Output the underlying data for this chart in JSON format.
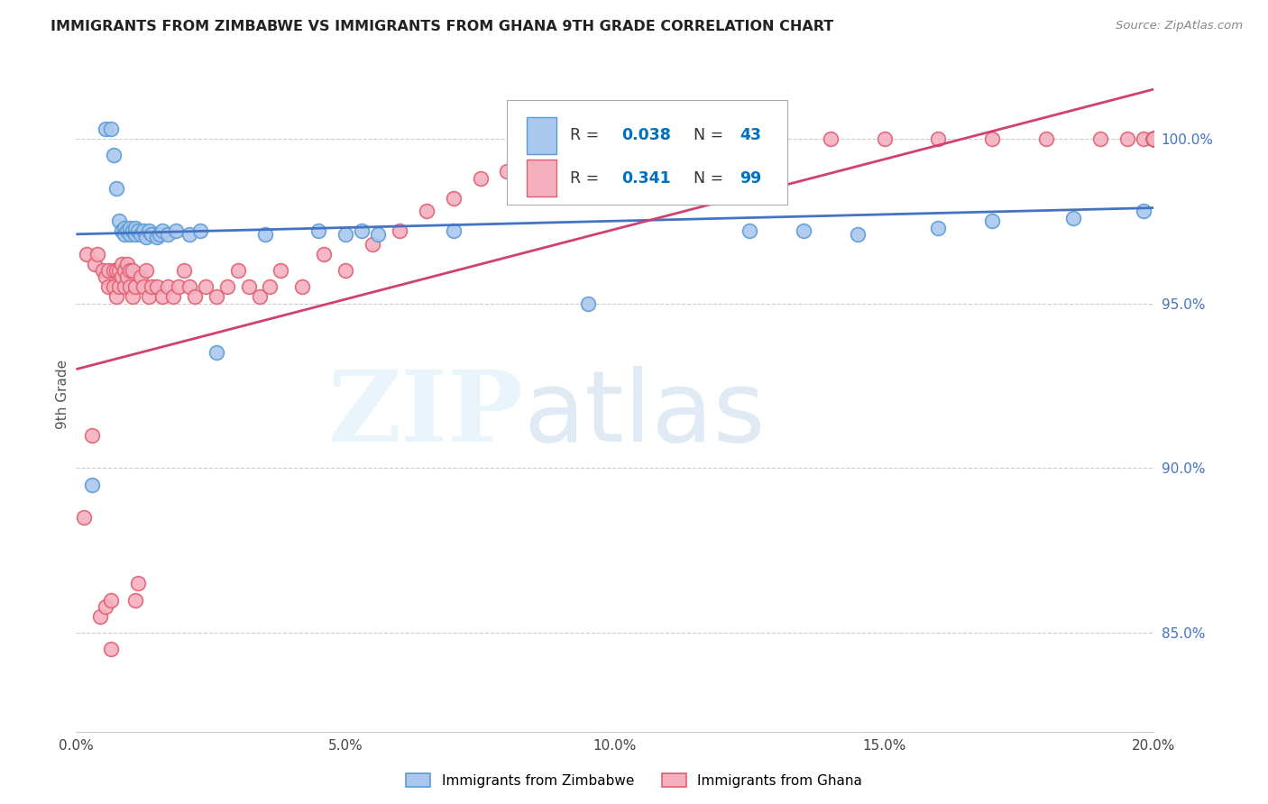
{
  "title": "IMMIGRANTS FROM ZIMBABWE VS IMMIGRANTS FROM GHANA 9TH GRADE CORRELATION CHART",
  "source": "Source: ZipAtlas.com",
  "ylabel": "9th Grade",
  "x_tick_labels": [
    "0.0%",
    "5.0%",
    "10.0%",
    "15.0%",
    "20.0%"
  ],
  "x_tick_positions": [
    0.0,
    5.0,
    10.0,
    15.0,
    20.0
  ],
  "y_tick_labels": [
    "85.0%",
    "90.0%",
    "95.0%",
    "100.0%"
  ],
  "y_tick_positions": [
    85.0,
    90.0,
    95.0,
    100.0
  ],
  "xlim": [
    0.0,
    20.0
  ],
  "ylim": [
    82.0,
    102.5
  ],
  "zimbabwe_face_color": "#aac8ee",
  "zimbabwe_edge_color": "#5b9bd5",
  "ghana_face_color": "#f5b0c0",
  "ghana_edge_color": "#e06070",
  "trend_zimbabwe_color": "#4472c4",
  "trend_ghana_color": "#d04070",
  "r_n_color": "#0070c0",
  "legend_r_zimbabwe": "0.038",
  "legend_n_zimbabwe": "43",
  "legend_r_ghana": "0.341",
  "legend_n_ghana": "99",
  "trend_zimbabwe_x0": 0.0,
  "trend_zimbabwe_x1": 20.0,
  "trend_zimbabwe_y0": 97.1,
  "trend_zimbabwe_y1": 97.9,
  "trend_ghana_x0": 0.0,
  "trend_ghana_x1": 20.0,
  "trend_ghana_y0": 93.0,
  "trend_ghana_y1": 101.5,
  "Zimbabwe_x": [
    0.3,
    0.55,
    0.65,
    0.7,
    0.75,
    0.8,
    0.85,
    0.9,
    0.9,
    0.95,
    1.0,
    1.0,
    1.05,
    1.1,
    1.1,
    1.15,
    1.2,
    1.25,
    1.3,
    1.35,
    1.4,
    1.5,
    1.55,
    1.6,
    1.7,
    1.85,
    2.1,
    2.3,
    2.6,
    3.5,
    4.5,
    5.0,
    5.3,
    5.6,
    7.0,
    9.5,
    12.5,
    13.5,
    14.5,
    16.0,
    17.0,
    18.5,
    19.8
  ],
  "Zimbabwe_y": [
    89.5,
    100.3,
    100.3,
    99.5,
    98.5,
    97.5,
    97.2,
    97.3,
    97.1,
    97.2,
    97.1,
    97.3,
    97.2,
    97.1,
    97.3,
    97.2,
    97.1,
    97.2,
    97.0,
    97.2,
    97.1,
    97.0,
    97.1,
    97.2,
    97.1,
    97.2,
    97.1,
    97.2,
    93.5,
    97.1,
    97.2,
    97.1,
    97.2,
    97.1,
    97.2,
    95.0,
    97.2,
    97.2,
    97.1,
    97.3,
    97.5,
    97.6,
    97.8
  ],
  "Ghana_x": [
    0.15,
    0.2,
    0.3,
    0.35,
    0.4,
    0.45,
    0.5,
    0.55,
    0.55,
    0.6,
    0.6,
    0.65,
    0.65,
    0.7,
    0.7,
    0.75,
    0.75,
    0.8,
    0.8,
    0.85,
    0.85,
    0.9,
    0.9,
    0.95,
    0.95,
    1.0,
    1.0,
    1.05,
    1.05,
    1.1,
    1.1,
    1.15,
    1.2,
    1.25,
    1.3,
    1.35,
    1.4,
    1.5,
    1.6,
    1.7,
    1.8,
    1.9,
    2.0,
    2.1,
    2.2,
    2.4,
    2.6,
    2.8,
    3.0,
    3.2,
    3.4,
    3.6,
    3.8,
    4.2,
    4.6,
    5.0,
    5.5,
    6.0,
    6.5,
    7.0,
    7.5,
    8.0,
    8.5,
    9.0,
    9.5,
    10.0,
    11.0,
    12.0,
    13.0,
    14.0,
    15.0,
    16.0,
    17.0,
    18.0,
    19.0,
    19.5,
    19.8,
    20.0,
    20.0,
    20.0,
    20.0,
    20.0,
    20.0,
    20.0,
    20.0,
    20.0,
    20.0,
    20.0,
    20.0,
    20.0,
    20.0,
    20.0,
    20.0,
    20.0,
    20.0,
    20.0,
    20.0,
    20.0,
    20.0
  ],
  "Ghana_y": [
    88.5,
    96.5,
    91.0,
    96.2,
    96.5,
    85.5,
    96.0,
    85.8,
    95.8,
    96.0,
    95.5,
    84.5,
    86.0,
    96.0,
    95.5,
    96.0,
    95.2,
    96.0,
    95.5,
    95.8,
    96.2,
    95.5,
    96.0,
    96.2,
    95.8,
    96.0,
    95.5,
    95.2,
    96.0,
    95.5,
    86.0,
    86.5,
    95.8,
    95.5,
    96.0,
    95.2,
    95.5,
    95.5,
    95.2,
    95.5,
    95.2,
    95.5,
    96.0,
    95.5,
    95.2,
    95.5,
    95.2,
    95.5,
    96.0,
    95.5,
    95.2,
    95.5,
    96.0,
    95.5,
    96.5,
    96.0,
    96.8,
    97.2,
    97.8,
    98.2,
    98.8,
    99.0,
    99.2,
    99.5,
    99.8,
    100.0,
    100.0,
    100.0,
    100.0,
    100.0,
    100.0,
    100.0,
    100.0,
    100.0,
    100.0,
    100.0,
    100.0,
    100.0,
    100.0,
    100.0,
    100.0,
    100.0,
    100.0,
    100.0,
    100.0,
    100.0,
    100.0,
    100.0,
    100.0,
    100.0,
    100.0,
    100.0,
    100.0,
    100.0,
    100.0,
    100.0,
    100.0,
    100.0,
    100.0
  ],
  "bottom_legend_labels": [
    "Immigrants from Zimbabwe",
    "Immigrants from Ghana"
  ],
  "marker_size": 130,
  "marker_lw": 1.2
}
